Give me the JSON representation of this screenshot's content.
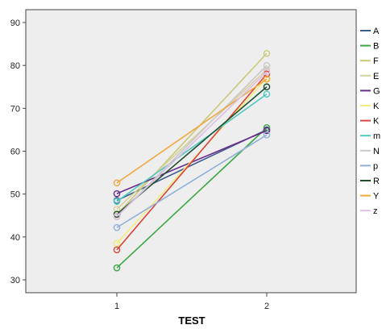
{
  "chart_data": {
    "type": "line",
    "xlabel": "TEST",
    "ylabel": "",
    "categories": [
      "1",
      "2"
    ],
    "ylim": [
      27,
      93
    ],
    "yticks": [
      30,
      40,
      50,
      60,
      70,
      80,
      90
    ],
    "grid": false,
    "legend_position": "right",
    "plot_background": "#eeeeee",
    "series": [
      {
        "name": "A",
        "color": "#3e5c8f",
        "values": [
          48.5,
          65.0
        ]
      },
      {
        "name": "B",
        "color": "#3aa845",
        "values": [
          32.8,
          65.5
        ]
      },
      {
        "name": "F",
        "color": "#c9c97a",
        "values": [
          45.2,
          82.8
        ]
      },
      {
        "name": "E",
        "color": "#d8d09a",
        "values": [
          46.5,
          79.0
        ]
      },
      {
        "name": "G",
        "color": "#6a2e8a",
        "values": [
          50.1,
          64.8
        ]
      },
      {
        "name": "K",
        "color": "#f2ee7c",
        "values": [
          38.5,
          77.0
        ]
      },
      {
        "name": "K",
        "color": "#d9453d",
        "values": [
          37.0,
          78.0
        ]
      },
      {
        "name": "m",
        "color": "#4fc9c0",
        "values": [
          48.3,
          73.3
        ]
      },
      {
        "name": "N",
        "color": "#c8c8c8",
        "values": [
          44.7,
          80.0
        ]
      },
      {
        "name": "p",
        "color": "#8fb0d8",
        "values": [
          42.2,
          63.8
        ]
      },
      {
        "name": "R",
        "color": "#1f4f2e",
        "values": [
          45.3,
          75.0
        ]
      },
      {
        "name": "Y",
        "color": "#f0a840",
        "values": [
          52.6,
          76.8
        ]
      },
      {
        "name": "z",
        "color": "#dcc0e4",
        "values": [
          44.8,
          78.5
        ]
      }
    ]
  }
}
